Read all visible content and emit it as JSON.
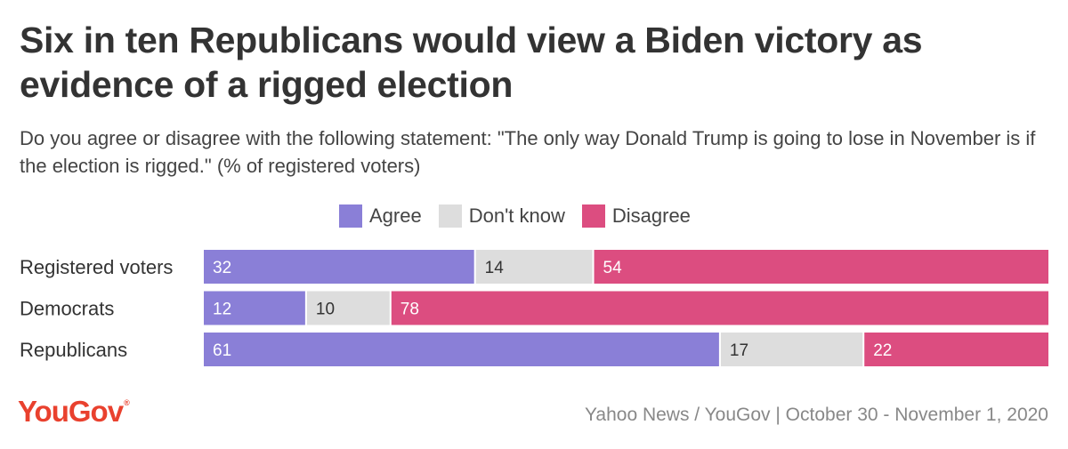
{
  "title": "Six in ten Republicans would view a Biden victory as evidence of a rigged election",
  "subtitle": "Do you agree or disagree with the following statement: \"The only way Donald Trump is going to lose in November is if the election is rigged.\" (% of registered voters)",
  "legend": [
    {
      "label": "Agree",
      "color": "#8a7fd7"
    },
    {
      "label": "Don't know",
      "color": "#dddddd"
    },
    {
      "label": "Disagree",
      "color": "#dc4d80"
    }
  ],
  "chart_data": {
    "type": "bar",
    "orientation": "horizontal",
    "stacked": true,
    "title": "Six in ten Republicans would view a Biden victory as evidence of a rigged election",
    "categories": [
      "Registered voters",
      "Democrats",
      "Republicans"
    ],
    "series": [
      {
        "name": "Agree",
        "color": "#8a7fd7",
        "label_color": "#ffffff",
        "values": [
          32,
          12,
          61
        ]
      },
      {
        "name": "Don't know",
        "color": "#dddddd",
        "label_color": "#333333",
        "values": [
          14,
          10,
          17
        ]
      },
      {
        "name": "Disagree",
        "color": "#dc4d80",
        "label_color": "#ffffff",
        "values": [
          54,
          78,
          22
        ]
      }
    ],
    "xlim": [
      0,
      100
    ],
    "legend_position": "top-center",
    "grid": false
  },
  "footer": {
    "logo": "YouGov",
    "logo_mark": "®",
    "source": "Yahoo News / YouGov | October 30 - November 1, 2020"
  }
}
